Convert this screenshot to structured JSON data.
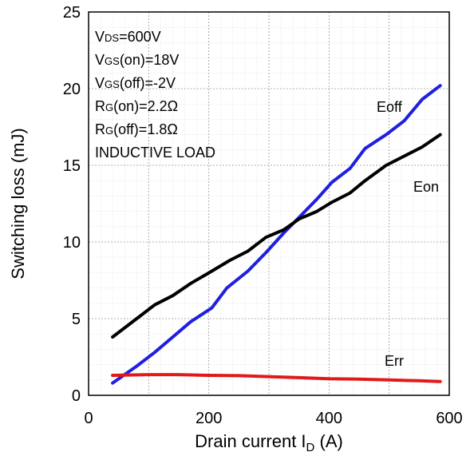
{
  "chart_data": {
    "type": "line",
    "xlabel": "Drain current I",
    "xlabel_sub": "D",
    "xlabel_unit": " (A)",
    "ylabel": "Switching loss (mJ)",
    "xlim": [
      0,
      600
    ],
    "ylim": [
      0,
      25
    ],
    "x_ticks": [
      0,
      200,
      400,
      600
    ],
    "y_ticks": [
      0,
      5,
      10,
      15,
      20,
      25
    ],
    "grid": true,
    "conditions": [
      {
        "main": "V",
        "sub": "DS",
        "rest": "=600V"
      },
      {
        "main": "V",
        "sub": "GS",
        "rest": "(on)=18V"
      },
      {
        "main": "V",
        "sub": "GS",
        "rest": "(off)=-2V"
      },
      {
        "main": "R",
        "sub": "G",
        "rest": "(on)=2.2Ω"
      },
      {
        "main": "R",
        "sub": "G",
        "rest": "(off)=1.8Ω"
      },
      {
        "main": "INDUCTIVE LOAD",
        "sub": "",
        "rest": ""
      }
    ],
    "series": [
      {
        "name": "Eoff",
        "color": "#1f1fe0",
        "x": [
          40,
          80,
          110,
          140,
          170,
          205,
          230,
          265,
          295,
          325,
          350,
          380,
          405,
          435,
          460,
          495,
          525,
          555,
          585
        ],
        "y": [
          0.8,
          1.9,
          2.8,
          3.8,
          4.8,
          5.7,
          7.0,
          8.1,
          9.3,
          10.6,
          11.6,
          12.8,
          13.9,
          14.8,
          16.1,
          17.0,
          17.9,
          19.3,
          20.2
        ]
      },
      {
        "name": "Eon",
        "color": "#000000",
        "x": [
          40,
          80,
          110,
          140,
          170,
          205,
          235,
          265,
          295,
          325,
          350,
          380,
          405,
          435,
          460,
          495,
          525,
          555,
          585
        ],
        "y": [
          3.8,
          5.0,
          5.9,
          6.5,
          7.3,
          8.1,
          8.8,
          9.4,
          10.3,
          10.8,
          11.5,
          12.0,
          12.6,
          13.2,
          14.0,
          15.0,
          15.6,
          16.2,
          17.0
        ]
      },
      {
        "name": "Err",
        "color": "#e01a1a",
        "x": [
          40,
          100,
          150,
          200,
          250,
          300,
          350,
          400,
          450,
          500,
          550,
          585
        ],
        "y": [
          1.3,
          1.35,
          1.35,
          1.3,
          1.28,
          1.22,
          1.15,
          1.08,
          1.05,
          1.0,
          0.95,
          0.9
        ]
      }
    ]
  }
}
